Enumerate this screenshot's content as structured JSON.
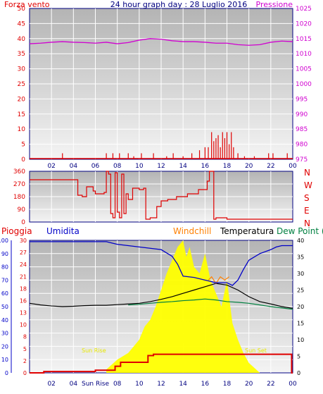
{
  "header": {
    "left_label": "Forza vento",
    "title": "24 hour graph day : 28 Luglio 2016",
    "right_label": "Pressione"
  },
  "colors": {
    "wind": "#e00000",
    "pressure": "#d000d0",
    "humidity": "#0000c8",
    "temperature": "#000000",
    "windchill": "#ff8000",
    "dewpoint": "#008040",
    "rain": "#e00000",
    "sun": "#ffff00",
    "frame": "#000080",
    "panel_top": "#b4b4b4",
    "panel_bottom": "#f4f4f4"
  },
  "x_ticks": [
    "02",
    "04",
    "06",
    "08",
    "10",
    "12",
    "14",
    "16",
    "18",
    "20",
    "22",
    "00"
  ],
  "x_ticks_bottom": [
    "02",
    "04",
    "Sun Rise",
    "08",
    "10",
    "12",
    "14",
    "16",
    "18",
    "20",
    "22",
    "00"
  ],
  "chart_data": [
    {
      "type": "line",
      "name": "wind-pressure",
      "x_range": [
        0,
        24
      ],
      "yleft": {
        "ticks": [
          "50",
          "45",
          "40",
          "35",
          "30",
          "25",
          "20",
          "15",
          "10",
          "5",
          "0"
        ],
        "range": [
          0,
          50
        ]
      },
      "yright": {
        "ticks": [
          "1025",
          "1020",
          "1015",
          "1010",
          "1005",
          "1000",
          "995",
          "990",
          "985",
          "980",
          "975"
        ],
        "range": [
          975,
          1025
        ]
      },
      "series": [
        {
          "name": "Pressione",
          "axis": "right",
          "x": [
            0,
            1,
            2,
            3,
            4,
            5,
            6,
            7,
            8,
            9,
            10,
            11,
            12,
            13,
            14,
            15,
            16,
            17,
            18,
            19,
            20,
            21,
            22,
            23,
            24
          ],
          "y": [
            1013.3,
            1013.5,
            1013.8,
            1014.0,
            1013.8,
            1013.7,
            1013.5,
            1013.8,
            1013.3,
            1013.7,
            1014.5,
            1015.0,
            1014.8,
            1014.3,
            1014.0,
            1014.0,
            1013.8,
            1013.5,
            1013.5,
            1013.0,
            1012.8,
            1013.0,
            1013.8,
            1014.2,
            1014.0
          ]
        },
        {
          "name": "Forza vento",
          "axis": "left",
          "x": [
            3.0,
            7.0,
            7.6,
            8.2,
            9.0,
            9.5,
            10.2,
            11.3,
            12.5,
            13.1,
            14.0,
            14.8,
            15.5,
            16.0,
            16.3,
            16.6,
            16.8,
            17.0,
            17.2,
            17.4,
            17.6,
            17.8,
            18.0,
            18.2,
            18.4,
            18.6,
            19.0,
            19.6,
            20.5,
            21.8,
            22.2,
            23.5
          ],
          "y": [
            2,
            2,
            2,
            2,
            2,
            1,
            2,
            2,
            1,
            2,
            1,
            2,
            3,
            4,
            4,
            9,
            6,
            7,
            8,
            4,
            9,
            7,
            9,
            5,
            9,
            4,
            2,
            1,
            1,
            2,
            2,
            2
          ]
        }
      ]
    },
    {
      "type": "line",
      "name": "wind-direction",
      "x_range": [
        0,
        24
      ],
      "yleft": {
        "ticks": [
          "360",
          "270",
          "180",
          "90",
          "0"
        ],
        "range": [
          0,
          360
        ]
      },
      "yright_labels": [
        "N",
        "W",
        "S",
        "E",
        "N"
      ],
      "series": [
        {
          "name": "direction",
          "x": [
            0,
            4.2,
            4.4,
            4.8,
            5.2,
            5.8,
            6.0,
            6.8,
            7.0,
            7.2,
            7.4,
            7.6,
            7.8,
            8.0,
            8.2,
            8.4,
            8.6,
            8.8,
            9.0,
            9.4,
            10.0,
            10.4,
            10.6,
            11.0,
            11.6,
            12.0,
            12.6,
            13.4,
            14.4,
            15.4,
            16.2,
            16.4,
            16.8,
            17.0,
            17.6,
            18.0,
            20.0,
            24.0
          ],
          "y": [
            300,
            300,
            190,
            180,
            250,
            220,
            200,
            210,
            360,
            340,
            60,
            30,
            350,
            70,
            30,
            340,
            60,
            200,
            160,
            240,
            230,
            240,
            20,
            30,
            110,
            150,
            160,
            180,
            200,
            230,
            290,
            360,
            20,
            30,
            30,
            20,
            20,
            20
          ]
        }
      ]
    },
    {
      "type": "line",
      "name": "temperature-humidity",
      "legend": [
        "Pioggia",
        "Umidita",
        "Windchill",
        "Temperatura",
        "Dew Point (°C"
      ],
      "x_range": [
        0,
        24
      ],
      "yleft_outer": {
        "ticks": [
          "100",
          "90",
          "80",
          "70",
          "60",
          "50",
          "40",
          "30",
          "20",
          "10",
          "0"
        ],
        "range": [
          0,
          100
        ]
      },
      "yleft_inner": {
        "ticks": [
          "30",
          "27",
          "24",
          "21",
          "18",
          "16",
          "13",
          "10",
          "8",
          "5",
          "2",
          "0"
        ]
      },
      "yright": {
        "ticks": [
          "40",
          "35",
          "30",
          "25",
          "20",
          "15",
          "10",
          "5",
          "0"
        ],
        "range": [
          0,
          40
        ]
      },
      "annotations": [
        "Sun Rise",
        "Sun Set"
      ],
      "series": [
        {
          "name": "Umidita",
          "axis": "outer",
          "x": [
            0,
            2,
            4,
            5,
            6,
            7,
            7.5,
            8,
            9,
            10,
            11,
            12,
            13,
            13.5,
            14,
            15,
            16,
            17,
            18,
            18.5,
            19,
            19.5,
            20,
            21,
            22,
            22.5,
            23,
            24
          ],
          "y": [
            99,
            99,
            99,
            99,
            99,
            99,
            98,
            97,
            96,
            95,
            94,
            93,
            88,
            82,
            73,
            72,
            70,
            68,
            68,
            66,
            70,
            78,
            85,
            90,
            93,
            95,
            96,
            96
          ]
        },
        {
          "name": "Temperatura",
          "axis": "right",
          "x": [
            0,
            1,
            2,
            3,
            4,
            5,
            6,
            7,
            8,
            9,
            10,
            11,
            12,
            13,
            14,
            15,
            16,
            17,
            18,
            19,
            20,
            21,
            22,
            23,
            24
          ],
          "y": [
            21,
            20.5,
            20.2,
            20.0,
            20.1,
            20.3,
            20.4,
            20.4,
            20.6,
            20.8,
            21.0,
            21.5,
            22.2,
            23.0,
            24.0,
            25.0,
            26.0,
            27.0,
            26.5,
            25.0,
            23.0,
            21.5,
            20.8,
            20.0,
            19.5
          ]
        },
        {
          "name": "Dew Point (°C",
          "axis": "right",
          "x": [
            9,
            10,
            11,
            12,
            13,
            14,
            15,
            16,
            17,
            18,
            19,
            20,
            21,
            22,
            23,
            24
          ],
          "y": [
            20.5,
            20.7,
            21.0,
            21.3,
            21.5,
            21.8,
            22.0,
            22.3,
            22.0,
            21.5,
            21.3,
            21.0,
            20.5,
            20.0,
            19.6,
            19.2
          ]
        },
        {
          "name": "Windchill",
          "axis": "right",
          "x": [
            16.3,
            16.6,
            17.0,
            17.4,
            17.8,
            18.2
          ],
          "y": [
            28,
            29,
            27,
            29,
            28,
            29
          ]
        },
        {
          "name": "Pioggia",
          "axis": "outer",
          "x": [
            0,
            1.3,
            1.3,
            6.0,
            6.0,
            7.8,
            7.8,
            8.3,
            8.3,
            10.8,
            10.8,
            11.3,
            11.3,
            23.9,
            23.9,
            24
          ],
          "y": [
            0,
            0,
            1,
            1,
            2,
            2,
            5,
            5,
            8,
            8,
            13,
            13,
            14,
            14,
            0,
            0
          ]
        },
        {
          "name": "sun",
          "axis": "right",
          "x": [
            7,
            8,
            9,
            10,
            10.5,
            11,
            11.5,
            12,
            12.5,
            13,
            13.5,
            14,
            14.3,
            14.6,
            15,
            15.5,
            16,
            16.5,
            17,
            17.5,
            18,
            18.5,
            19,
            19.5,
            20,
            21
          ],
          "y": [
            1,
            4,
            6,
            10,
            14,
            16,
            20,
            25,
            30,
            34,
            38,
            40,
            35,
            38,
            32,
            30,
            36,
            28,
            24,
            20,
            28,
            15,
            10,
            6,
            3,
            0
          ]
        }
      ]
    }
  ]
}
